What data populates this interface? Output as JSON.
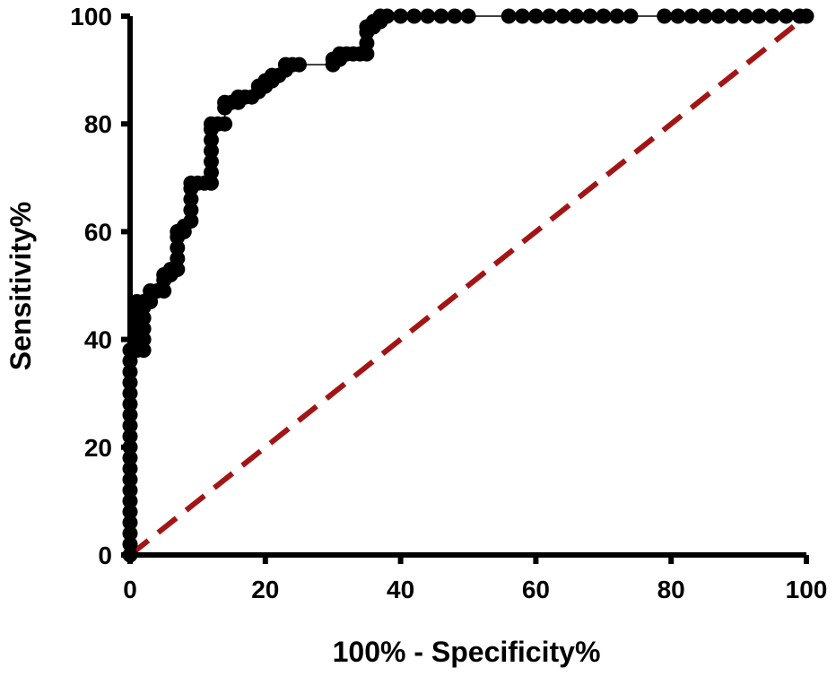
{
  "chart_data": {
    "type": "line",
    "title": "",
    "xlabel": "100% - Specificity%",
    "ylabel": "Sensitivity%",
    "xlim": [
      0,
      100
    ],
    "ylim": [
      0,
      100
    ],
    "xticks": [
      "0",
      "20",
      "40",
      "60",
      "80",
      "100"
    ],
    "yticks": [
      "0",
      "20",
      "40",
      "60",
      "80",
      "100"
    ],
    "grid": false,
    "legend": "none",
    "series": [
      {
        "name": "ROC curve",
        "color": "#000000",
        "marker": "circle",
        "points": [
          [
            0,
            0
          ],
          [
            0,
            2
          ],
          [
            0,
            4
          ],
          [
            0,
            6
          ],
          [
            0,
            8
          ],
          [
            0,
            10
          ],
          [
            0,
            12
          ],
          [
            0,
            14
          ],
          [
            0,
            16
          ],
          [
            0,
            18
          ],
          [
            0,
            20
          ],
          [
            0,
            22
          ],
          [
            0,
            24
          ],
          [
            0,
            26
          ],
          [
            0,
            28
          ],
          [
            0,
            30
          ],
          [
            0,
            32
          ],
          [
            0,
            34
          ],
          [
            0,
            36
          ],
          [
            0,
            38
          ],
          [
            1,
            38
          ],
          [
            1,
            40
          ],
          [
            1,
            42
          ],
          [
            1,
            44
          ],
          [
            1,
            46
          ],
          [
            1,
            47
          ],
          [
            2,
            38
          ],
          [
            2,
            40
          ],
          [
            2,
            42
          ],
          [
            2,
            44
          ],
          [
            2,
            46
          ],
          [
            2,
            47
          ],
          [
            3,
            47
          ],
          [
            3,
            48
          ],
          [
            3,
            49
          ],
          [
            4,
            49
          ],
          [
            5,
            49
          ],
          [
            5,
            51
          ],
          [
            5,
            52
          ],
          [
            6,
            52
          ],
          [
            6,
            53
          ],
          [
            7,
            53
          ],
          [
            7,
            55
          ],
          [
            7,
            57
          ],
          [
            7,
            59
          ],
          [
            7,
            60
          ],
          [
            8,
            60
          ],
          [
            8,
            61
          ],
          [
            9,
            62
          ],
          [
            9,
            64
          ],
          [
            9,
            66
          ],
          [
            9,
            68
          ],
          [
            9,
            69
          ],
          [
            10,
            69
          ],
          [
            11,
            69
          ],
          [
            12,
            69
          ],
          [
            12,
            71
          ],
          [
            12,
            73
          ],
          [
            12,
            75
          ],
          [
            12,
            77
          ],
          [
            12,
            79
          ],
          [
            12,
            80
          ],
          [
            13,
            80
          ],
          [
            14,
            80
          ],
          [
            14,
            83
          ],
          [
            14,
            84
          ],
          [
            15,
            84
          ],
          [
            16,
            84
          ],
          [
            16,
            85
          ],
          [
            17,
            85
          ],
          [
            18,
            85
          ],
          [
            19,
            86
          ],
          [
            19,
            87
          ],
          [
            20,
            87
          ],
          [
            20,
            88
          ],
          [
            21,
            88
          ],
          [
            21,
            89
          ],
          [
            22,
            89
          ],
          [
            23,
            90
          ],
          [
            23,
            91
          ],
          [
            24,
            91
          ],
          [
            25,
            91
          ],
          [
            30,
            91
          ],
          [
            30,
            92
          ],
          [
            31,
            92
          ],
          [
            31,
            93
          ],
          [
            32,
            93
          ],
          [
            33,
            93
          ],
          [
            34,
            93
          ],
          [
            35,
            93
          ],
          [
            35,
            95
          ],
          [
            35,
            97
          ],
          [
            35,
            98
          ],
          [
            36,
            98
          ],
          [
            36,
            99
          ],
          [
            37,
            99
          ],
          [
            37,
            100
          ],
          [
            38,
            100
          ],
          [
            40,
            100
          ],
          [
            42,
            100
          ],
          [
            44,
            100
          ],
          [
            46,
            100
          ],
          [
            48,
            100
          ],
          [
            50,
            100
          ],
          [
            56,
            100
          ],
          [
            58,
            100
          ],
          [
            60,
            100
          ],
          [
            62,
            100
          ],
          [
            64,
            100
          ],
          [
            66,
            100
          ],
          [
            68,
            100
          ],
          [
            70,
            100
          ],
          [
            72,
            100
          ],
          [
            74,
            100
          ],
          [
            79,
            100
          ],
          [
            81,
            100
          ],
          [
            83,
            100
          ],
          [
            85,
            100
          ],
          [
            87,
            100
          ],
          [
            89,
            100
          ],
          [
            91,
            100
          ],
          [
            93,
            100
          ],
          [
            95,
            100
          ],
          [
            97,
            100
          ],
          [
            99,
            100
          ],
          [
            100,
            100
          ]
        ]
      },
      {
        "name": "Reference line",
        "color": "#a31515",
        "style": "dashed",
        "points": [
          [
            0,
            0
          ],
          [
            100,
            100
          ]
        ]
      }
    ]
  }
}
